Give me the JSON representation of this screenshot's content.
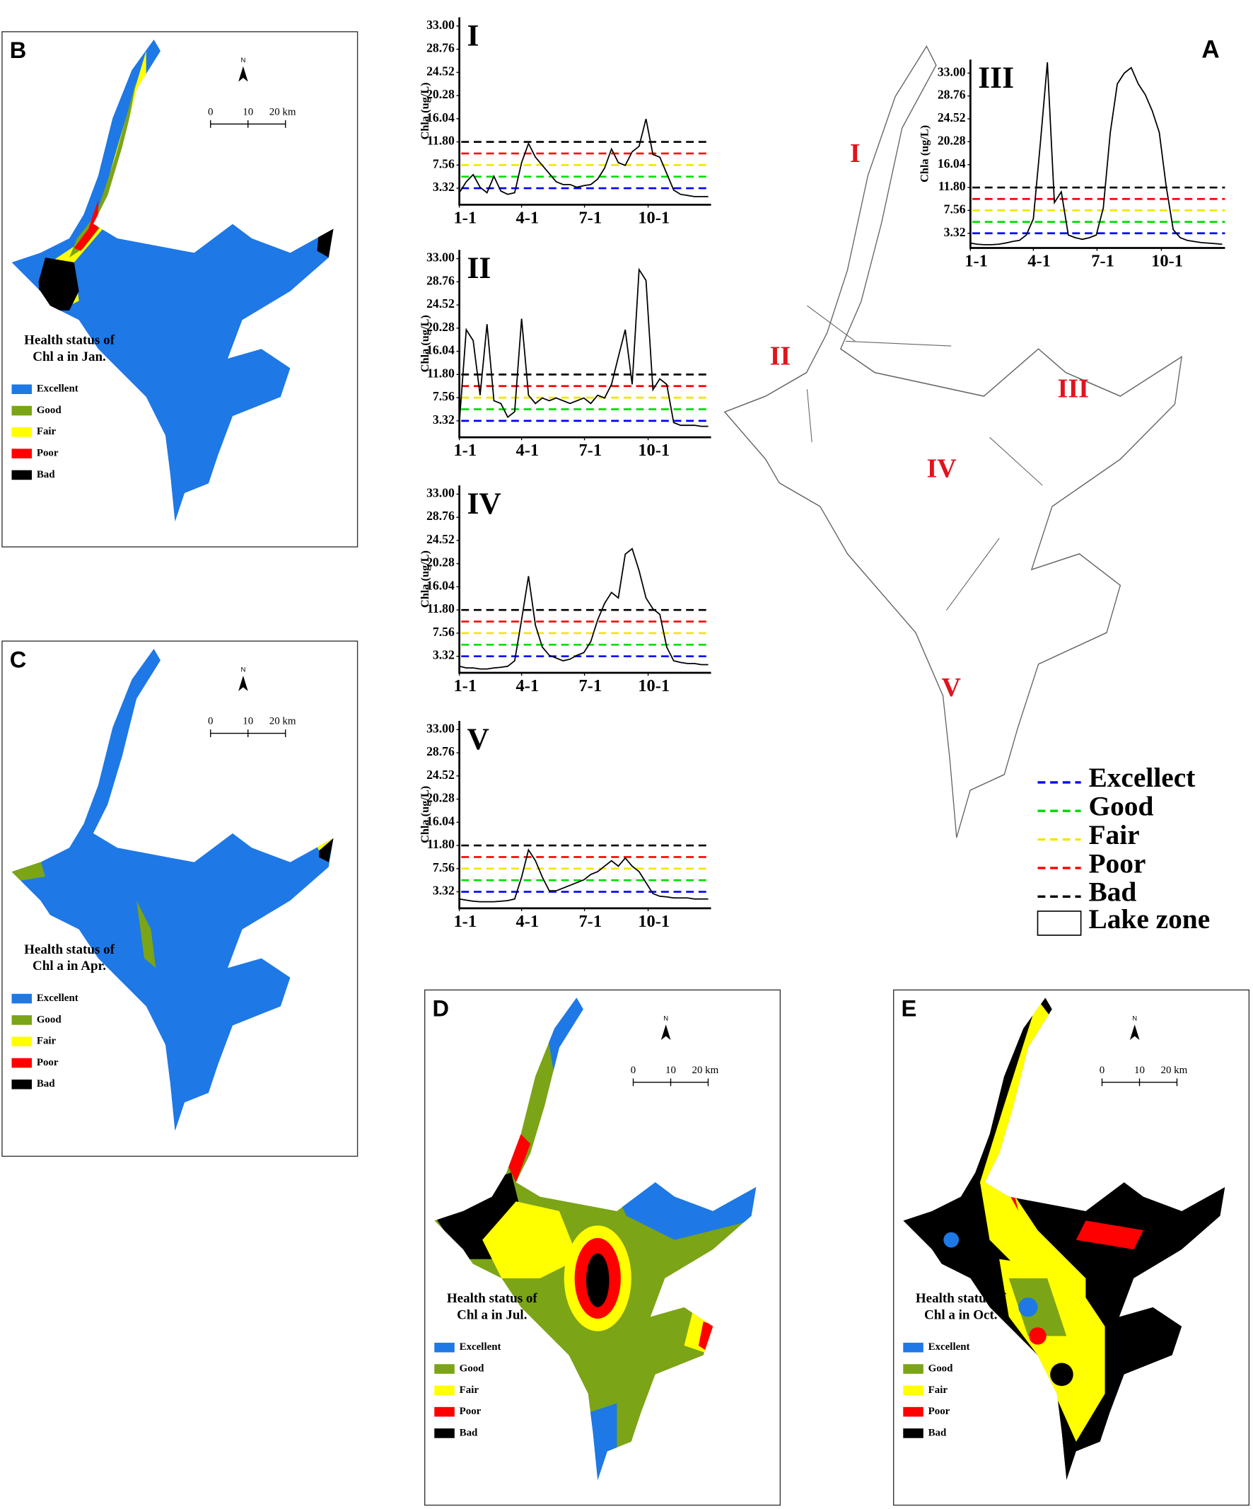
{
  "chart_data": [
    {
      "type": "line",
      "title": "I",
      "ylabel": "Chla (ug/L)",
      "color": "#000000",
      "x": [
        1,
        11,
        21,
        31,
        41,
        51,
        61,
        71,
        81,
        91,
        101,
        111,
        121,
        131,
        141,
        151,
        161,
        171,
        181,
        191,
        201,
        211,
        221,
        231,
        241,
        251,
        261,
        271,
        281,
        291,
        301,
        311,
        321,
        331,
        341,
        351,
        361
      ],
      "values": [
        2.5,
        4.5,
        5.8,
        3.5,
        2.5,
        5.5,
        2.8,
        2.2,
        2.5,
        8,
        11.5,
        9,
        7.5,
        6,
        4.5,
        4,
        4,
        3.5,
        3.8,
        4,
        5,
        7,
        10.5,
        8,
        7.5,
        10,
        11,
        16,
        9.5,
        9,
        6,
        3,
        2.2,
        2,
        1.8,
        1.8,
        1.8
      ],
      "xlim": [
        1,
        365
      ],
      "xticks": [
        {
          "value": 1,
          "label": "1-1"
        },
        {
          "value": 91,
          "label": "4-1"
        },
        {
          "value": 182,
          "label": "7-1"
        },
        {
          "value": 274,
          "label": "10-1"
        }
      ],
      "ylim": [
        0.3,
        34.6
      ],
      "yticks": [
        3.32,
        7.56,
        {
          "value": 11.8,
          "label": "11.80"
        },
        16.04,
        20.28,
        24.52,
        28.76,
        {
          "value": 33,
          "label": "33.00"
        }
      ]
    },
    {
      "type": "line",
      "title": "II",
      "ylabel": "Chla (ug/L)",
      "color": "#000000",
      "x": [
        1,
        11,
        21,
        31,
        41,
        51,
        61,
        71,
        81,
        91,
        101,
        111,
        121,
        131,
        141,
        151,
        161,
        171,
        181,
        191,
        201,
        211,
        221,
        231,
        241,
        251,
        261,
        271,
        281,
        291,
        301,
        311,
        321,
        331,
        341,
        351,
        361
      ],
      "values": [
        3,
        20,
        18,
        8,
        21,
        7,
        6.5,
        4,
        5,
        22,
        8,
        6.5,
        7.5,
        7,
        7.5,
        7,
        6.5,
        7,
        7.5,
        6.5,
        8,
        7.5,
        10,
        15,
        20,
        10,
        31,
        29,
        9,
        11,
        10,
        3,
        2.5,
        2.5,
        2.5,
        2.3,
        2.3
      ],
      "xlim": [
        1,
        365
      ],
      "xticks": [
        {
          "value": 1,
          "label": "1-1"
        },
        {
          "value": 91,
          "label": "4-1"
        },
        {
          "value": 182,
          "label": "7-1"
        },
        {
          "value": 274,
          "label": "10-1"
        }
      ],
      "ylim": [
        0.3,
        34.6
      ],
      "yticks": [
        3.32,
        7.56,
        {
          "value": 11.8,
          "label": "11.80"
        },
        16.04,
        20.28,
        24.52,
        28.76,
        {
          "value": 33,
          "label": "33.00"
        }
      ]
    },
    {
      "type": "line",
      "title": "III",
      "ylabel": "Chla (ug/L)",
      "color": "#000000",
      "x": [
        1,
        11,
        21,
        31,
        41,
        51,
        61,
        71,
        81,
        91,
        101,
        111,
        121,
        131,
        141,
        151,
        161,
        171,
        181,
        191,
        201,
        211,
        221,
        231,
        241,
        251,
        261,
        271,
        281,
        291,
        301,
        311,
        321,
        331,
        341,
        351,
        361
      ],
      "values": [
        1.5,
        1.3,
        1.2,
        1.2,
        1.3,
        1.5,
        1.8,
        2,
        3,
        6,
        20,
        35,
        9,
        11,
        3,
        2.5,
        2.2,
        2.5,
        3,
        8,
        22,
        31,
        33,
        34,
        31,
        29,
        26,
        22,
        12,
        4,
        2.5,
        2,
        1.8,
        1.6,
        1.5,
        1.4,
        1.3
      ],
      "xlim": [
        1,
        365
      ],
      "xticks": [
        {
          "value": 1,
          "label": "1-1"
        },
        {
          "value": 91,
          "label": "4-1"
        },
        {
          "value": 182,
          "label": "7-1"
        },
        {
          "value": 274,
          "label": "10-1"
        }
      ],
      "ylim": [
        0.6,
        35.5
      ],
      "yticks": [
        3.32,
        7.56,
        {
          "value": 11.8,
          "label": "11.80"
        },
        16.04,
        20.28,
        24.52,
        28.76,
        {
          "value": 33,
          "label": "33.00"
        }
      ]
    },
    {
      "type": "line",
      "title": "IV",
      "ylabel": "Chla (ug/L)",
      "color": "#000000",
      "x": [
        1,
        11,
        21,
        31,
        41,
        51,
        61,
        71,
        81,
        91,
        101,
        111,
        121,
        131,
        141,
        151,
        161,
        171,
        181,
        191,
        201,
        211,
        221,
        231,
        241,
        251,
        261,
        271,
        281,
        291,
        301,
        311,
        321,
        331,
        341,
        351,
        361
      ],
      "values": [
        1.5,
        1.2,
        1.2,
        1,
        1,
        1.2,
        1.3,
        1.5,
        2.5,
        10,
        18,
        9,
        5,
        3.5,
        3,
        2.5,
        2.8,
        3.5,
        4,
        6,
        10,
        13,
        15,
        14,
        22,
        23,
        19,
        14,
        12,
        11,
        5,
        2.5,
        2.2,
        2,
        2,
        1.8,
        1.8
      ],
      "xlim": [
        1,
        365
      ],
      "xticks": [
        {
          "value": 1,
          "label": "1-1"
        },
        {
          "value": 91,
          "label": "4-1"
        },
        {
          "value": 182,
          "label": "7-1"
        },
        {
          "value": 274,
          "label": "10-1"
        }
      ],
      "ylim": [
        0.3,
        34.6
      ],
      "yticks": [
        3.32,
        7.56,
        {
          "value": 11.8,
          "label": "11.80"
        },
        16.04,
        20.28,
        24.52,
        28.76,
        {
          "value": 33,
          "label": "33.00"
        }
      ]
    },
    {
      "type": "line",
      "title": "V",
      "ylabel": "Chla (ug/L)",
      "color": "#000000",
      "x": [
        1,
        11,
        21,
        31,
        41,
        51,
        61,
        71,
        81,
        91,
        101,
        111,
        121,
        131,
        141,
        151,
        161,
        171,
        181,
        191,
        201,
        211,
        221,
        231,
        241,
        251,
        261,
        271,
        281,
        291,
        301,
        311,
        321,
        331,
        341,
        351,
        361
      ],
      "values": [
        2,
        1.8,
        1.6,
        1.5,
        1.5,
        1.5,
        1.6,
        1.7,
        2,
        6,
        11,
        9,
        6,
        3.5,
        3.5,
        4,
        4.5,
        5,
        5.5,
        6.5,
        7,
        8,
        9,
        8,
        9.5,
        8,
        7,
        5,
        3,
        2.5,
        2.4,
        2.2,
        2.2,
        2.2,
        2,
        2,
        2
      ],
      "xlim": [
        1,
        365
      ],
      "xticks": [
        {
          "value": 1,
          "label": "1-1"
        },
        {
          "value": 91,
          "label": "4-1"
        },
        {
          "value": 182,
          "label": "7-1"
        },
        {
          "value": 274,
          "label": "10-1"
        }
      ],
      "ylim": [
        0.3,
        34.6
      ],
      "yticks": [
        3.32,
        7.56,
        {
          "value": 11.8,
          "label": "11.80"
        },
        16.04,
        20.28,
        24.52,
        28.76,
        {
          "value": 33,
          "label": "33.00"
        }
      ]
    }
  ],
  "thresholds": [
    {
      "name": "Excellect",
      "color": "#0000ff",
      "value": 3.32
    },
    {
      "name": "Good",
      "color": "#00dd00",
      "value": 5.44
    },
    {
      "name": "Fair",
      "color": "#f2e600",
      "value": 7.56
    },
    {
      "name": "Poor",
      "color": "#ff0000",
      "value": 9.68
    },
    {
      "name": "Bad",
      "color": "#000000",
      "value": 11.8
    }
  ],
  "zone_map": {
    "label": "A",
    "zones": [
      "I",
      "II",
      "III",
      "IV",
      "V"
    ],
    "lake_zone": "Lake zone"
  },
  "maps": [
    {
      "label": "B",
      "north": "N",
      "scale": [
        "0",
        "10",
        "20 km"
      ],
      "legend_title": [
        "Health status of",
        "Chl a in Jan."
      ],
      "legend": [
        {
          "name": "Excellent",
          "color": "#1e78e6"
        },
        {
          "name": "Good",
          "color": "#7ba417"
        },
        {
          "name": "Fair",
          "color": "#ffff00"
        },
        {
          "name": "Poor",
          "color": "#ff0000"
        },
        {
          "name": "Bad",
          "color": "#000000"
        }
      ]
    },
    {
      "label": "C",
      "north": "N",
      "scale": [
        "0",
        "10",
        "20 km"
      ],
      "legend_title": [
        "Health status of",
        "Chl a in Apr."
      ],
      "legend": [
        {
          "name": "Excellent",
          "color": "#1e78e6"
        },
        {
          "name": "Good",
          "color": "#7ba417"
        },
        {
          "name": "Fair",
          "color": "#ffff00"
        },
        {
          "name": "Poor",
          "color": "#ff0000"
        },
        {
          "name": "Bad",
          "color": "#000000"
        }
      ]
    },
    {
      "label": "D",
      "north": "N",
      "scale": [
        "0",
        "10",
        "20 km"
      ],
      "legend_title": [
        "Health status of",
        "Chl a in Jul."
      ],
      "legend": [
        {
          "name": "Excellent",
          "color": "#1e78e6"
        },
        {
          "name": "Good",
          "color": "#7ba417"
        },
        {
          "name": "Fair",
          "color": "#ffff00"
        },
        {
          "name": "Poor",
          "color": "#ff0000"
        },
        {
          "name": "Bad",
          "color": "#000000"
        }
      ]
    },
    {
      "label": "E",
      "north": "N",
      "scale": [
        "0",
        "10",
        "20 km"
      ],
      "legend_title": [
        "Health status of",
        "Chl a in Oct."
      ],
      "legend": [
        {
          "name": "Excellent",
          "color": "#1e78e6"
        },
        {
          "name": "Good",
          "color": "#7ba417"
        },
        {
          "name": "Fair",
          "color": "#ffff00"
        },
        {
          "name": "Poor",
          "color": "#ff0000"
        },
        {
          "name": "Bad",
          "color": "#000000"
        }
      ]
    }
  ]
}
